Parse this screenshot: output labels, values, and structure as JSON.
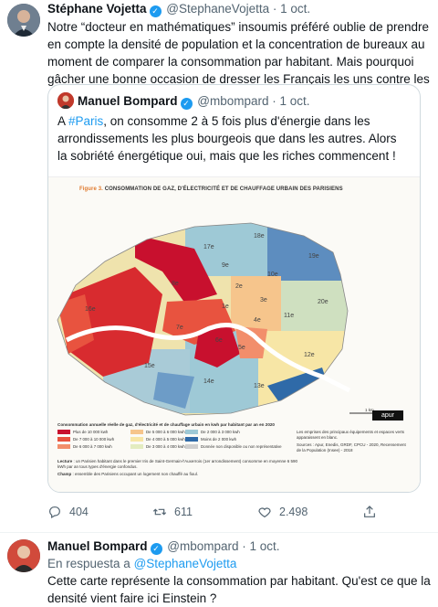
{
  "tweet1": {
    "name": "Stéphane Vojetta",
    "handle": "@StephaneVojetta",
    "time": "· 1 oct.",
    "text": "Notre “docteur en mathématiques” insoumis préféré oublie de prendre en compte la densité de population et la concentration de bureaux au moment de comparer la consommation par habitant. Mais pourquoi gâcher une bonne occasion de dresser les Français les uns contre les autres?",
    "quoted": {
      "name": "Manuel Bompard",
      "handle": "@mbompard",
      "time": "· 1 oct.",
      "text_prefix": "A ",
      "hashtag": "#Paris",
      "text_rest": ", on consomme 2 à 5 fois plus d'énergie dans les arrondissements les plus bourgeois que dans les autres. Alors la sobriété énergétique oui, mais que les riches commencent !",
      "map": {
        "figure_label": "Figure 3.",
        "title": "CONSOMMATION DE GAZ, D'ÉLECTRICITÉ ET DE CHAUFFAGE URBAIN DES PARISIENS",
        "legend_title": "Consommation annuelle réelle de gaz, d'électricité et de chauffage urbain en kwh par habitant par an en 2020",
        "legend": [
          {
            "label": "Plus de 10 000 kwh",
            "color": "#c8102e"
          },
          {
            "label": "De 7 000 à 10 000 kwh",
            "color": "#e8533f"
          },
          {
            "label": "De 6 000 à 7 000 kwh",
            "color": "#f28e6b"
          },
          {
            "label": "De 5 000 à 6 000 kwh",
            "color": "#f6c58c"
          },
          {
            "label": "De 4 000 à 5 000 kwh",
            "color": "#f7e6a6"
          },
          {
            "label": "De 3 000 à 4 000 kwh",
            "color": "#e3ecc0"
          },
          {
            "label": "De 2 000 à 3 000 kwh",
            "color": "#9ec9d6"
          },
          {
            "label": "Moins de 2 000 kwh",
            "color": "#2f6aa8"
          },
          {
            "label": "Donnée non disponible ou non représentative",
            "color": "#cfcfcf"
          }
        ],
        "side_note": "Les emprises des principaux équipements et espaces verts apparaissent en blanc.",
        "sources": "Sources : Apur, Enedis, GRDF, CPCU - 2020, Recensement de la Population (Insee) - 2018",
        "lecture_label": "Lecture",
        "lecture": " : un Parisien habitant dans le premier Iris de Saint-Germain-l'Auxerrois (1er arrondissement) consomme en moyenne 6 590 kWh par an tous types d'énergie confondus.",
        "champ_label": "Champ",
        "champ": " : ensemble des Parisiens occupant un logement non chauffé au fioul.",
        "scale_label": "1 km",
        "brand": "apur",
        "arrondissements": [
          "17e",
          "18e",
          "19e",
          "8e",
          "9e",
          "10e",
          "16e",
          "2e",
          "3e",
          "11e",
          "20e",
          "1e",
          "4e",
          "7e",
          "6e",
          "5e",
          "12e",
          "15e",
          "14e",
          "13e"
        ]
      }
    },
    "actions": {
      "replies": "404",
      "retweets": "611",
      "likes": "2.498"
    }
  },
  "tweet2": {
    "name": "Manuel Bompard",
    "handle": "@mbompard",
    "time": "· 1 oct.",
    "reply_prefix": "En respuesta a ",
    "reply_to": "@StephaneVojetta",
    "text": "Cette carte représente la consommation par habitant. Qu'est ce que la densité vient faire ici Einstein ?"
  },
  "colors": {
    "accent": "#1d9bf0",
    "muted": "#536471",
    "text": "#0f1419"
  }
}
